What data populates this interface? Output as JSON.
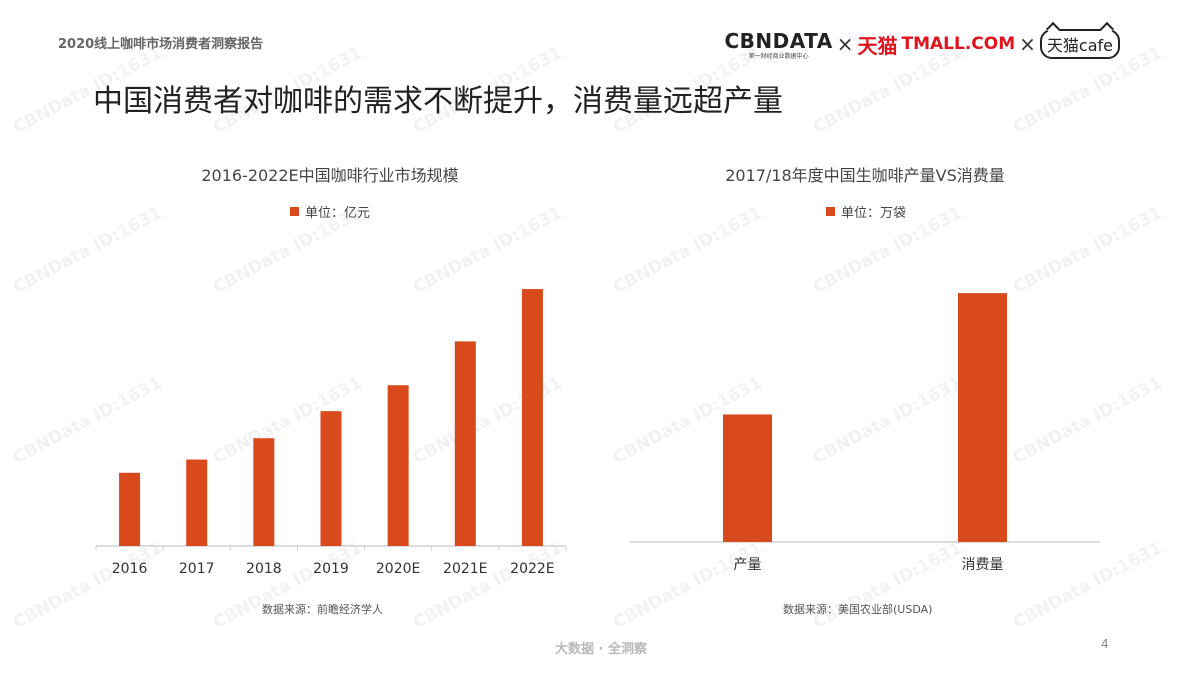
{
  "header": {
    "report_title": "2020线上咖啡市场消费者洞察报告"
  },
  "logos": {
    "cbn_main": "CBNDATA",
    "cbn_sub": "第一财经商业数据中心",
    "x": "×",
    "tmall_cn": "天猫",
    "tmall_en": "TMALL.COM",
    "cafe": "天猫cafe"
  },
  "page_title": "中国消费者对咖啡的需求不断提升，消费量远超产量",
  "watermark_text": "CBNData ID:1631",
  "footer": {
    "brand": "大数据 · 全洞察",
    "page_number": "4"
  },
  "colors": {
    "bar": "#d84a1b",
    "axis": "#d0d0d0"
  },
  "chart_data": [
    {
      "type": "bar",
      "title": "2016-2022E中国咖啡行业市场规模",
      "legend": "单位：亿元",
      "source": "数据来源：前瞻经济学人",
      "categories": [
        "2016",
        "2017",
        "2018",
        "2019",
        "2020E",
        "2021E",
        "2022E"
      ],
      "values": [
        593,
        700,
        873,
        1092,
        1302,
        1657,
        2081
      ],
      "ylim": [
        0,
        2300
      ]
    },
    {
      "type": "bar",
      "title": "2017/18年度中国生咖啡产量VS消费量",
      "legend": "单位：万袋",
      "source": "数据来源：美国农业部(USDA)",
      "categories": [
        "产量",
        "消费量"
      ],
      "values": [
        205,
        400
      ],
      "ylim": [
        0,
        450
      ]
    }
  ]
}
